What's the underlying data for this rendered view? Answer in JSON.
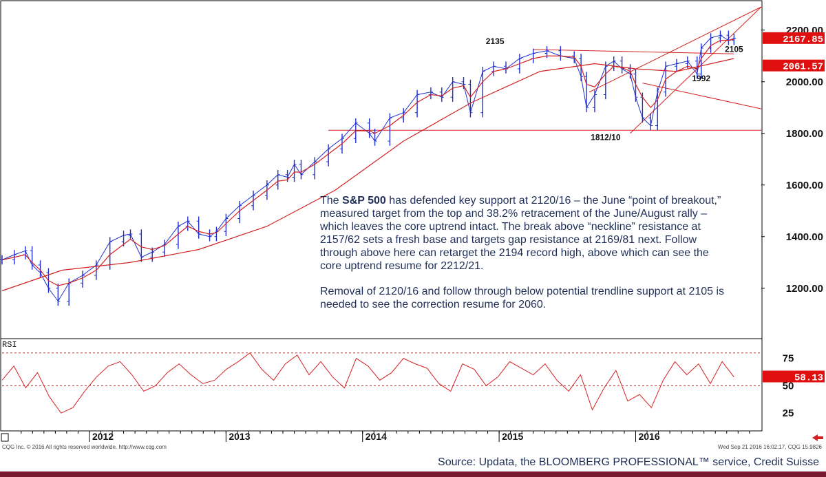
{
  "chart_data": {
    "type": "line",
    "title": "",
    "xlabel": "",
    "ylabel": "",
    "ylim": [
      1010,
      2290
    ],
    "y_ticks": [
      "2200.00",
      "2000.00",
      "1800.00",
      "1600.00",
      "1400.00",
      "1200.00"
    ],
    "x_year_labels": [
      "2012",
      "2013",
      "2014",
      "2015",
      "2016"
    ],
    "series": [
      {
        "kind": "price-bars",
        "color": "#1f2fcf",
        "x": [
          2011.36,
          2011.45,
          2011.53,
          2011.58,
          2011.64,
          2011.7,
          2011.77,
          2011.85,
          2011.95,
          2012.05,
          2012.15,
          2012.25,
          2012.3,
          2012.38,
          2012.46,
          2012.55,
          2012.65,
          2012.72,
          2012.8,
          2012.88,
          2012.93,
          2013.0,
          2013.1,
          2013.2,
          2013.3,
          2013.38,
          2013.45,
          2013.5,
          2013.55,
          2013.65,
          2013.75,
          2013.85,
          2013.95,
          2014.05,
          2014.09,
          2014.2,
          2014.3,
          2014.4,
          2014.5,
          2014.58,
          2014.66,
          2014.74,
          2014.79,
          2014.88,
          2014.96,
          2015.05,
          2015.15,
          2015.25,
          2015.35,
          2015.45,
          2015.55,
          2015.6,
          2015.64,
          2015.7,
          2015.78,
          2015.84,
          2015.9,
          2015.96,
          2016.0,
          2016.05,
          2016.11,
          2016.16,
          2016.22,
          2016.3,
          2016.38,
          2016.45,
          2016.48,
          2016.55,
          2016.62,
          2016.68,
          2016.72
        ],
        "values": [
          1310,
          1330,
          1345,
          1290,
          1260,
          1200,
          1150,
          1220,
          1250,
          1290,
          1380,
          1405,
          1410,
          1320,
          1340,
          1370,
          1440,
          1460,
          1410,
          1400,
          1420,
          1470,
          1520,
          1560,
          1600,
          1640,
          1630,
          1680,
          1640,
          1690,
          1740,
          1780,
          1840,
          1800,
          1770,
          1860,
          1880,
          1950,
          1960,
          1940,
          2000,
          1990,
          1880,
          2040,
          2060,
          2050,
          2090,
          2110,
          2120,
          2100,
          2090,
          2020,
          1900,
          1950,
          2060,
          2080,
          2050,
          2030,
          1940,
          1860,
          1830,
          1960,
          2060,
          2070,
          2080,
          2030,
          2130,
          2170,
          2180,
          2160,
          2168
        ]
      },
      {
        "kind": "moving-average-fast",
        "color": "#d42020",
        "values": [
          1310,
          1320,
          1330,
          1300,
          1270,
          1230,
          1210,
          1220,
          1240,
          1270,
          1330,
          1370,
          1390,
          1360,
          1350,
          1365,
          1410,
          1440,
          1420,
          1410,
          1415,
          1450,
          1500,
          1540,
          1580,
          1615,
          1620,
          1650,
          1650,
          1680,
          1720,
          1760,
          1810,
          1810,
          1800,
          1830,
          1870,
          1920,
          1950,
          1945,
          1975,
          1985,
          1940,
          2000,
          2040,
          2050,
          2070,
          2090,
          2100,
          2100,
          2095,
          2060,
          1990,
          1980,
          2030,
          2060,
          2055,
          2040,
          1990,
          1940,
          1900,
          1930,
          2010,
          2040,
          2060,
          2050,
          2090,
          2140,
          2160,
          2160,
          2165
        ]
      },
      {
        "kind": "moving-average-slow",
        "color": "#d42020",
        "x": [
          2011.36,
          2011.8,
          2012.3,
          2012.8,
          2013.3,
          2013.8,
          2014.3,
          2014.8,
          2015.3,
          2015.7,
          2016.0,
          2016.3,
          2016.72
        ],
        "values": [
          1190,
          1270,
          1300,
          1350,
          1440,
          1580,
          1770,
          1920,
          2040,
          2070,
          2050,
          2040,
          2090
        ]
      }
    ],
    "reference_lines": [
      {
        "kind": "neckline-support",
        "value": 1812
      },
      {
        "kind": "resistance-trend",
        "x": [
          2015.25,
          2016.72
        ],
        "values": [
          2125,
          2108
        ]
      },
      {
        "kind": "uptrend-channel-lower",
        "x": [
          2015.96,
          2016.92
        ],
        "values": [
          1800,
          2290
        ]
      },
      {
        "kind": "uptrend-channel-upper",
        "x": [
          2015.66,
          2016.92
        ],
        "values": [
          1960,
          2290
        ]
      },
      {
        "kind": "downtrend",
        "x": [
          2016.05,
          2016.92
        ],
        "values": [
          1995,
          1895
        ]
      }
    ],
    "annotations": [
      {
        "text": "2135",
        "x": 2014.97,
        "y": 2135
      },
      {
        "text": "2105",
        "x": 2016.72,
        "y": 2105
      },
      {
        "text": "1992",
        "x": 2016.48,
        "y": 1992
      },
      {
        "text": "1812/10",
        "x": 2015.78,
        "y": 1812
      }
    ],
    "value_badges": [
      {
        "text": "2167.85",
        "value": 2167.85,
        "color": "#e01010"
      },
      {
        "text": "2061.57",
        "value": 2061.57,
        "color": "#e01010"
      }
    ],
    "rsi": {
      "label": "RSI",
      "ylim": [
        10,
        88
      ],
      "ticks": [
        "75",
        "50",
        "25"
      ],
      "reference_lines": [
        80,
        50
      ],
      "latest_badge": "58.13",
      "latest_value": 58.13,
      "color": "#d42020",
      "values": [
        55,
        68,
        48,
        62,
        40,
        25,
        30,
        45,
        58,
        68,
        72,
        60,
        45,
        50,
        62,
        70,
        60,
        52,
        55,
        65,
        72,
        80,
        65,
        55,
        70,
        78,
        60,
        72,
        58,
        48,
        75,
        68,
        55,
        62,
        75,
        70,
        66,
        52,
        45,
        70,
        65,
        50,
        58,
        72,
        66,
        60,
        70,
        55,
        45,
        60,
        28,
        48,
        64,
        36,
        42,
        30,
        55,
        72,
        60,
        70,
        52,
        72,
        58
      ]
    }
  },
  "commentary": {
    "p1_bold": "S&P 500",
    "p1_lead": "The ",
    "p1_rest": " has defended key support at 2120/16 – the June “point of breakout,” measured target from the top and 38.2% retracement of the June/August rally – which leaves the core uptrend intact.  The break above “neckline” resistance at 2157/62 sets a fresh base and targets gap resistance at 2169/81 next.  Follow through above here can retarget the 2194 record high, above which can see the core uptrend resume for 2212/21.",
    "p2": "Removal of 2120/16 and follow through below potential trendline support at 2105 is needed to see the correction resume for 2060."
  },
  "footer": {
    "left": "CQG Inc. © 2016 All rights reserved worldwide. http://www.cqg.com",
    "right": "Wed Sep 21 2016 16:02:17, CQG 15.9826",
    "source": "Source: Updata, the BLOOMBERG PROFESSIONAL™ service, Credit Suisse"
  },
  "colors": {
    "price": "#1f2fcf",
    "lines": "#d42020",
    "badge": "#e01010",
    "bottom_bar": "#7a1a2e",
    "text_blue": "#1f2f57"
  }
}
